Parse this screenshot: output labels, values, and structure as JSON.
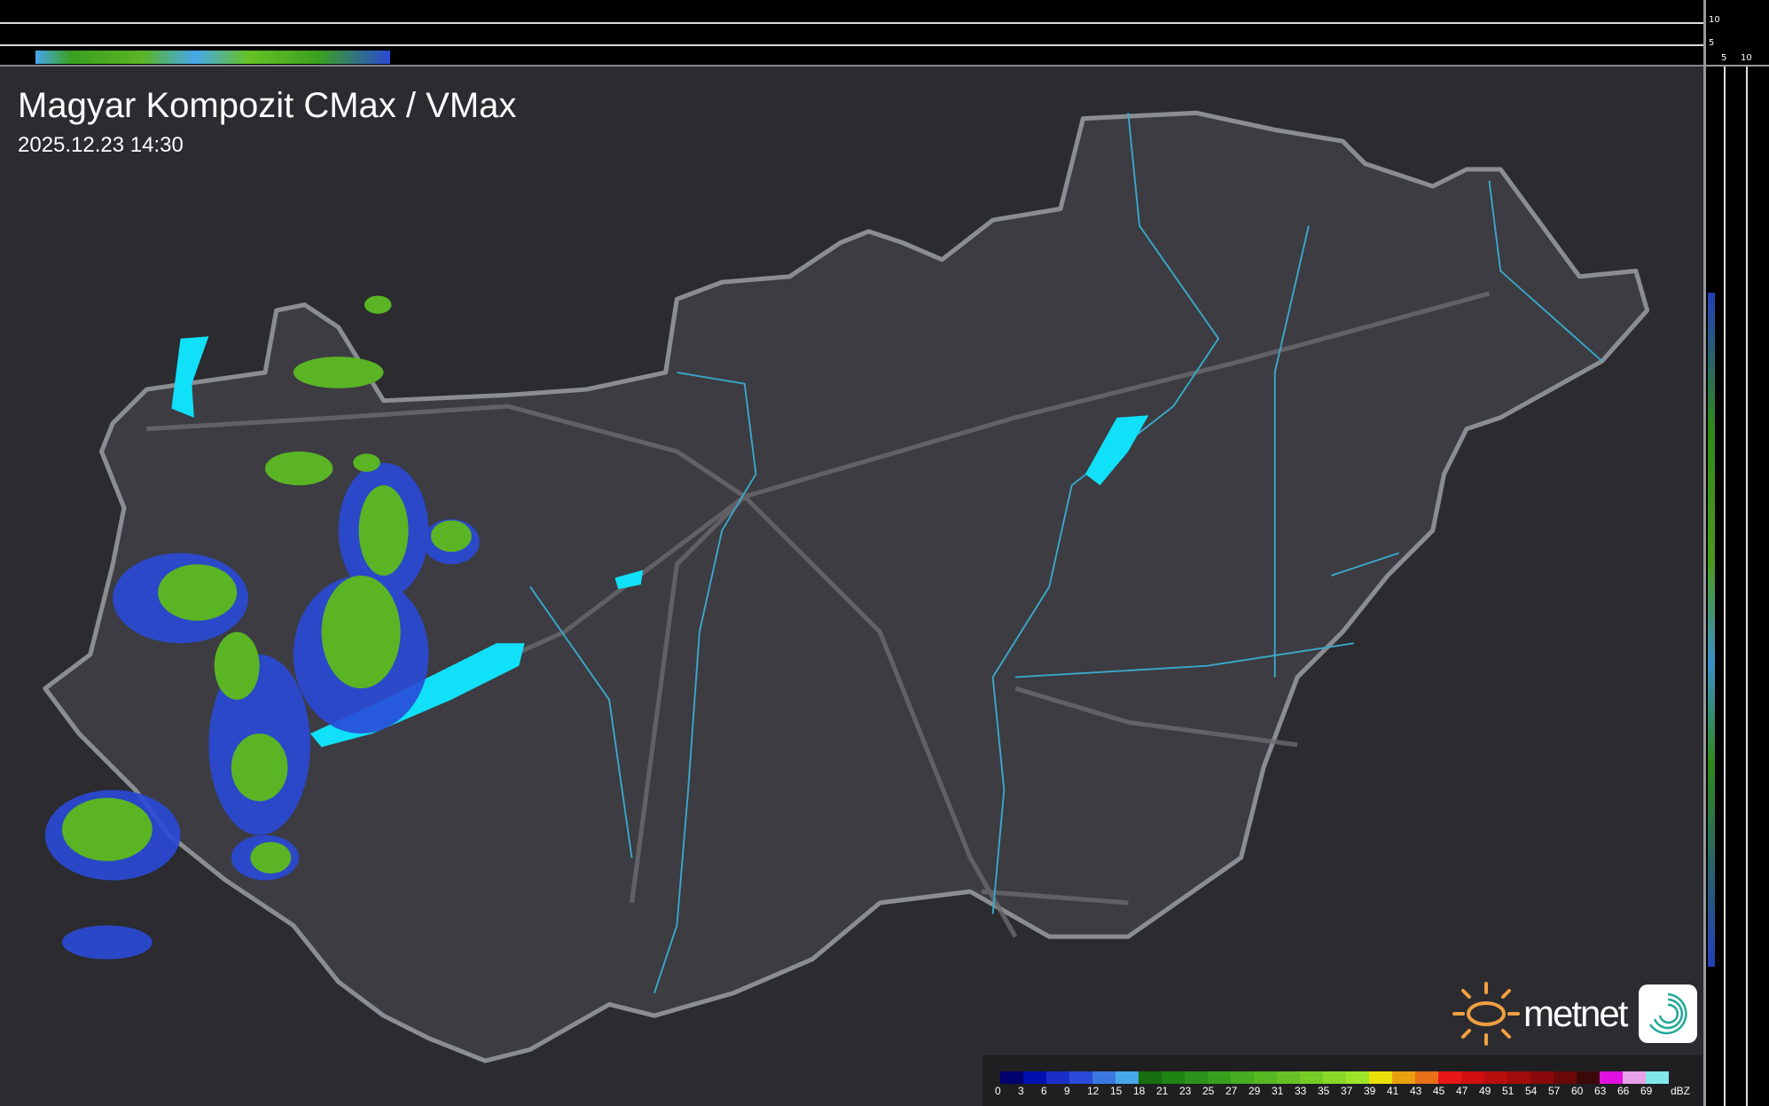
{
  "header": {
    "title": "Magyar Kompozit CMax / VMax",
    "datetime": "2025.12.23 14:30"
  },
  "profile_axes": {
    "top_ticks": [
      "10",
      "5"
    ],
    "side_ticks": [
      "5",
      "10"
    ]
  },
  "legend": {
    "unit": "dBZ",
    "labels": [
      "0",
      "3",
      "6",
      "9",
      "12",
      "15",
      "18",
      "21",
      "23",
      "25",
      "27",
      "29",
      "31",
      "33",
      "35",
      "37",
      "39",
      "41",
      "43",
      "45",
      "47",
      "49",
      "51",
      "54",
      "57",
      "60",
      "63",
      "66",
      "69"
    ],
    "colors": [
      "#00006e",
      "#0010b0",
      "#1a2ec8",
      "#2a4ad8",
      "#3a78e0",
      "#46a8ea",
      "#166e10",
      "#1e8414",
      "#2a941a",
      "#36a01e",
      "#46ac20",
      "#56b822",
      "#66c224",
      "#76cc26",
      "#8ad82a",
      "#9ee42a",
      "#e8e008",
      "#e8a010",
      "#e87018",
      "#e81818",
      "#d01010",
      "#b80e0e",
      "#a00c0c",
      "#880a0a",
      "#6a0808",
      "#3a0808",
      "#e010e0",
      "#e8a0e8",
      "#80e8e8"
    ]
  },
  "brand": {
    "name": "metnet",
    "accent": "#f0a040",
    "app_icon_color": "#20a898"
  },
  "colors": {
    "background": "#2b2b30",
    "country": "#3c3c42",
    "border": "#8a8d92",
    "rivers": "#3aa8c8",
    "lakes": "#10e0f8"
  }
}
